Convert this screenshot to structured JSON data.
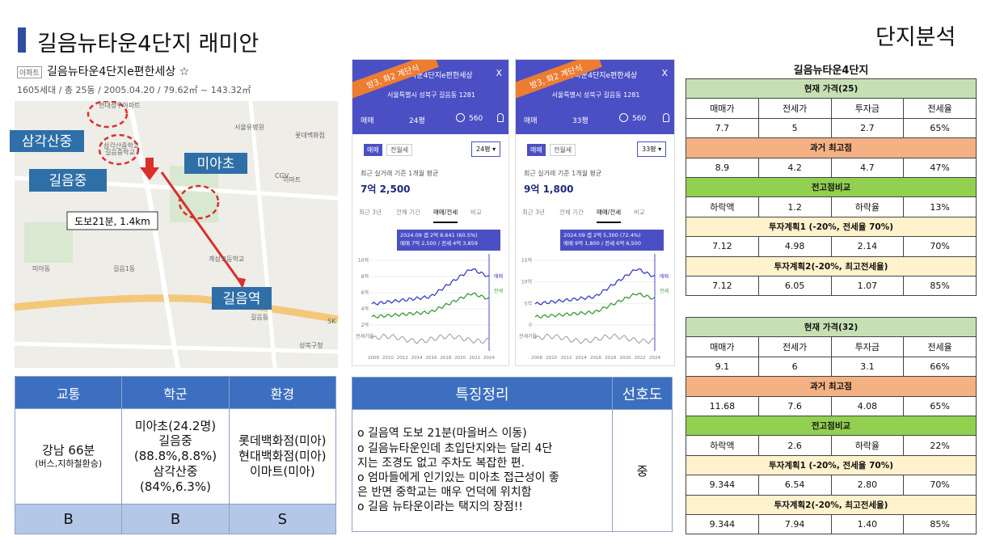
{
  "header": {
    "title": "길음뉴타운4단지 래미안",
    "section": "단지분석"
  },
  "listing": {
    "tag": "아파트",
    "name": "길음뉴타운4단지e편한세상 ☆",
    "info": "1605세대 / 총 25동 / 2005.04.20 / 79.62㎡ ~ 143.32㎡"
  },
  "map": {
    "callouts": [
      "삼각산중",
      "길음중",
      "미아초",
      "길음역"
    ],
    "walk": "도보21분, 1.4km",
    "labels": [
      "현대성우아파트",
      "삼각산중학교",
      "길음중학교",
      "계성고등학교",
      "서울유병원",
      "롯데백화점",
      "CGV",
      "이마트",
      "길음1동",
      "미아동",
      "길음동",
      "성북구청",
      "SK"
    ]
  },
  "listings": [
    {
      "banner": "방3, 화2 계단식",
      "name": "길음뉴타운4단지e편한세상",
      "close": "X",
      "address": "서울특별시 성북구 길음동 1281",
      "deal": "매매",
      "size": "24평",
      "count": "560",
      "tabs": [
        "매매",
        "전월세"
      ],
      "size_select": "24평 ▾",
      "avg_label": "최근 실거래 기준 1개월 평균",
      "avg_price": "7억 2,500",
      "periods": [
        "최근 3년",
        "전체 기간",
        "매매/전세",
        "비교"
      ],
      "tooltip": [
        "2024.09 갭 2억 8,641 (60.5%)",
        "매매 7억 2,500 / 전세 4억 3,859"
      ],
      "yaxis": [
        "10억",
        "8억",
        "6억",
        "4억",
        "2억"
      ],
      "legend": [
        "매매",
        "전세"
      ],
      "ratio_label": "전세가율",
      "xaxis": [
        "2008",
        "2010",
        "2012",
        "2014",
        "2016",
        "2018",
        "2020",
        "2022",
        "2024"
      ]
    },
    {
      "banner": "방3, 화2 계단식",
      "name": "길음뉴타운4단지e편한세상",
      "close": "X",
      "address": "서울특별시 성북구 길음동 1281",
      "deal": "매매",
      "size": "33평",
      "count": "560",
      "tabs": [
        "매매",
        "전월세"
      ],
      "size_select": "33평 ▾",
      "avg_label": "최근 실거래 기준 1개월 평균",
      "avg_price": "9억 1,800",
      "periods": [
        "최근 3년",
        "전체 기간",
        "매매/전세",
        "비교"
      ],
      "tooltip": [
        "2024.09 갭 2억 5,300 (72.4%)",
        "매매 9억 1,800 / 전세 6억 6,500"
      ],
      "yaxis": [
        "15억",
        "10억",
        "5억",
        "0"
      ],
      "legend": [
        "매매",
        "전세"
      ],
      "ratio_label": "전세가율",
      "xaxis": [
        "2008",
        "2010",
        "2012",
        "2014",
        "2016",
        "2018",
        "2020",
        "2022",
        "2024"
      ]
    }
  ],
  "summary_table": {
    "headers": [
      "교통",
      "학군",
      "환경"
    ],
    "details": [
      [
        "강남 66분",
        "(버스,지하철환승)"
      ],
      [
        "미아초(24.2명)",
        "길음중",
        "(88.8%,8.8%)",
        "삼각산중",
        "(84%,6.3%)"
      ],
      [
        "롯데백화점(미아)",
        "현대백화점(미아)",
        "이마트(미아)"
      ]
    ],
    "grades": [
      "B",
      "B",
      "S"
    ]
  },
  "features": {
    "header": "특징정리",
    "pref_header": "선호도",
    "lines": [
      "o 길음역 도보 21분(마을버스 이동)",
      "o 길음뉴타운인데 초입단지와는 달리 4단",
      "지는 조경도 없고 주차도 복잡한 편.",
      "o 엄마들에게 인기있는 미아초 접근성이 좋",
      "은 반면 중학교는 매우 언덕에 위치함",
      "o 길음 뉴타운이라는 택지의 장점!!"
    ],
    "pref": "중"
  },
  "analysis": {
    "title": "길음뉴타운4단지",
    "tables": [
      {
        "rows": [
          {
            "section": "현재 가격(25)",
            "color": "#c6e0b4"
          },
          {
            "cells": [
              "매매가",
              "전세가",
              "투자금",
              "전세율"
            ]
          },
          {
            "cells": [
              "7.7",
              "5",
              "2.7",
              "65%"
            ]
          },
          {
            "section": "과거 최고점",
            "color": "#f4b183"
          },
          {
            "cells": [
              "8.9",
              "4.2",
              "4.7",
              "47%"
            ]
          },
          {
            "section": "전고점비교",
            "color": "#92d050"
          },
          {
            "cells": [
              "하락액",
              "1.2",
              "하락율",
              "13%"
            ]
          },
          {
            "section": "투자계획1 (-20%, 전세율 70%)",
            "color": "#fff2cc"
          },
          {
            "cells": [
              "7.12",
              "4.98",
              "2.14",
              "70%"
            ]
          },
          {
            "section": "투자계획2(-20%, 최고전세율)",
            "color": "#fff2cc"
          },
          {
            "cells": [
              "7.12",
              "6.05",
              "1.07",
              "85%"
            ]
          }
        ]
      },
      {
        "rows": [
          {
            "section": "현재 가격(32)",
            "color": "#c6e0b4"
          },
          {
            "cells": [
              "매매가",
              "전세가",
              "투자금",
              "전세율"
            ]
          },
          {
            "cells": [
              "9.1",
              "6",
              "3.1",
              "66%"
            ]
          },
          {
            "section": "과거 최고점",
            "color": "#f4b183"
          },
          {
            "cells": [
              "11.68",
              "7.6",
              "4.08",
              "65%"
            ]
          },
          {
            "section": "전고점비교",
            "color": "#92d050"
          },
          {
            "cells": [
              "하락액",
              "2.6",
              "하락율",
              "22%"
            ]
          },
          {
            "section": "투자계획1 (-20%, 전세율 70%)",
            "color": "#fff2cc"
          },
          {
            "cells": [
              "9.344",
              "6.54",
              "2.80",
              "70%"
            ]
          },
          {
            "section": "투자계획2(-20%, 최고전세율)",
            "color": "#fff2cc"
          },
          {
            "cells": [
              "9.344",
              "7.94",
              "1.40",
              "85%"
            ]
          }
        ]
      }
    ]
  }
}
